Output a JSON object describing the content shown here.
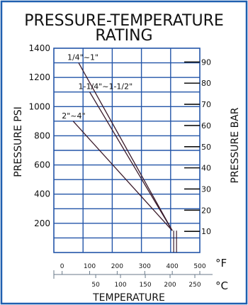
{
  "chart_data": {
    "type": "line",
    "title_lines": [
      "PRESSURE-TEMPERATURE",
      "RATING"
    ],
    "ylabel": "PRESSURE PSI",
    "y2label": "PRESSURE BAR",
    "xlabel": "TEMPERATURE",
    "x_unit_f": "°F",
    "x_unit_c": "°C",
    "xlim_f": [
      -30,
      500
    ],
    "ylim_psi": [
      0,
      1400
    ],
    "ylim_bar": [
      0,
      96.5
    ],
    "psi_ticks": [
      "200",
      "400",
      "600",
      "800",
      "1000",
      "1200",
      "1400"
    ],
    "bar_ticks": [
      "10",
      "20",
      "30",
      "40",
      "50",
      "60",
      "70",
      "80",
      "90"
    ],
    "f_ticks": [
      "0",
      "100",
      "200",
      "300",
      "400",
      "500"
    ],
    "c_ticks": [
      "50",
      "100",
      "150",
      "200",
      "250"
    ],
    "series": [
      {
        "name": "1/4\"~1\"",
        "x": [
          60,
          400
        ],
        "y": [
          1300,
          150
        ]
      },
      {
        "name": "1-1/4\"~1-1/2\"",
        "x": [
          100,
          400
        ],
        "y": [
          1100,
          150
        ]
      },
      {
        "name": "2\"~4\"",
        "x": [
          40,
          400
        ],
        "y": [
          900,
          150
        ]
      }
    ],
    "line_color": "#3a1a2a",
    "grid_color": "#2355a8",
    "frame_color": "#1f5fb0",
    "grid": true
  }
}
